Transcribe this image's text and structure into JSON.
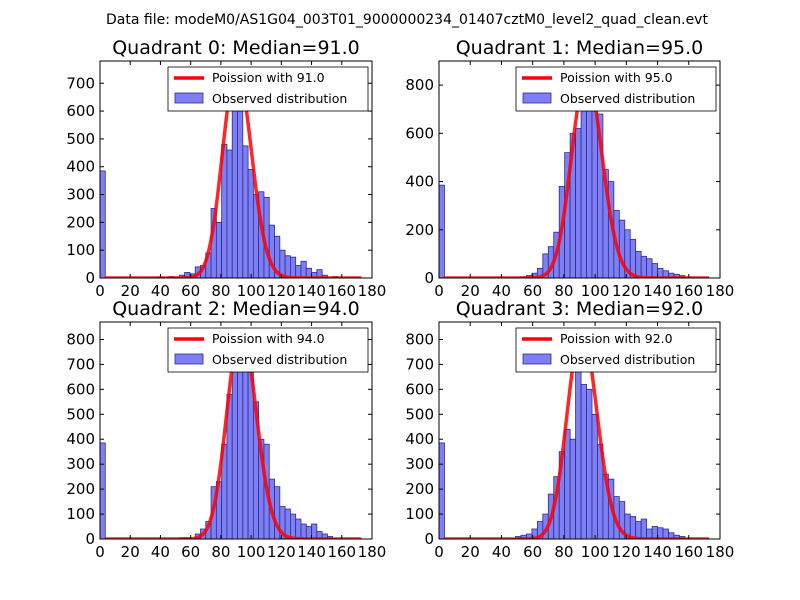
{
  "figure": {
    "suptitle": "Data file: modeM0/AS1G04_003T01_9000000234_01407cztM0_level2_quad_clean.evt"
  },
  "style": {
    "bar_fill": "#7f7ff5",
    "bar_edge": "#2c2c8c",
    "line_color": "#ff0000",
    "axis_color": "#000000"
  },
  "chart_data": [
    {
      "type": "bar",
      "title": "Quadrant 0: Median=91.0",
      "legend": {
        "line": "Poission with 91.0",
        "bars": "Observed distribution",
        "placement": "upper-right"
      },
      "xlim": [
        0,
        180
      ],
      "ylim": [
        0,
        780
      ],
      "xticks": [
        0,
        20,
        40,
        60,
        80,
        100,
        120,
        140,
        160,
        180
      ],
      "yticks": [
        0,
        100,
        200,
        300,
        400,
        500,
        600,
        700
      ],
      "bin_width": 3.5,
      "bins": [
        {
          "x": 0,
          "y": 385
        },
        {
          "x": 38.5,
          "y": 3
        },
        {
          "x": 45.5,
          "y": 5
        },
        {
          "x": 49,
          "y": 3
        },
        {
          "x": 52.5,
          "y": 10
        },
        {
          "x": 56,
          "y": 20
        },
        {
          "x": 59.5,
          "y": 15
        },
        {
          "x": 63,
          "y": 40
        },
        {
          "x": 66.5,
          "y": 45
        },
        {
          "x": 70,
          "y": 90
        },
        {
          "x": 73.5,
          "y": 250
        },
        {
          "x": 77,
          "y": 200
        },
        {
          "x": 80.5,
          "y": 480
        },
        {
          "x": 84,
          "y": 460
        },
        {
          "x": 87.5,
          "y": 700
        },
        {
          "x": 91,
          "y": 600
        },
        {
          "x": 94.5,
          "y": 475
        },
        {
          "x": 98,
          "y": 390
        },
        {
          "x": 101.5,
          "y": 300
        },
        {
          "x": 105,
          "y": 310
        },
        {
          "x": 108.5,
          "y": 290
        },
        {
          "x": 112,
          "y": 190
        },
        {
          "x": 115.5,
          "y": 150
        },
        {
          "x": 119,
          "y": 100
        },
        {
          "x": 122.5,
          "y": 80
        },
        {
          "x": 126,
          "y": 75
        },
        {
          "x": 129.5,
          "y": 45
        },
        {
          "x": 133,
          "y": 60
        },
        {
          "x": 136.5,
          "y": 35
        },
        {
          "x": 140,
          "y": 20
        },
        {
          "x": 143.5,
          "y": 30
        },
        {
          "x": 147,
          "y": 10
        },
        {
          "x": 154,
          "y": 5
        }
      ],
      "poisson_mean": 91.0,
      "poisson_peak": 750,
      "curve_range": [
        3,
        173
      ]
    },
    {
      "type": "bar",
      "title": "Quadrant 1: Median=95.0",
      "legend": {
        "line": "Poission with 95.0",
        "bars": "Observed distribution",
        "placement": "upper-right"
      },
      "xlim": [
        0,
        180
      ],
      "ylim": [
        0,
        900
      ],
      "xticks": [
        0,
        20,
        40,
        60,
        80,
        100,
        120,
        140,
        160,
        180
      ],
      "yticks": [
        0,
        200,
        400,
        600,
        800
      ],
      "bin_width": 3.5,
      "bins": [
        {
          "x": 0,
          "y": 385
        },
        {
          "x": 52.5,
          "y": 5
        },
        {
          "x": 56,
          "y": 10
        },
        {
          "x": 59.5,
          "y": 20
        },
        {
          "x": 63,
          "y": 40
        },
        {
          "x": 66.5,
          "y": 100
        },
        {
          "x": 70,
          "y": 130
        },
        {
          "x": 73.5,
          "y": 190
        },
        {
          "x": 77,
          "y": 380
        },
        {
          "x": 80.5,
          "y": 520
        },
        {
          "x": 84,
          "y": 600
        },
        {
          "x": 87.5,
          "y": 620
        },
        {
          "x": 91,
          "y": 760
        },
        {
          "x": 94.5,
          "y": 850
        },
        {
          "x": 98,
          "y": 700
        },
        {
          "x": 101.5,
          "y": 680
        },
        {
          "x": 105,
          "y": 450
        },
        {
          "x": 108.5,
          "y": 400
        },
        {
          "x": 112,
          "y": 280
        },
        {
          "x": 115.5,
          "y": 240
        },
        {
          "x": 119,
          "y": 200
        },
        {
          "x": 122.5,
          "y": 160
        },
        {
          "x": 126,
          "y": 110
        },
        {
          "x": 129.5,
          "y": 90
        },
        {
          "x": 133,
          "y": 80
        },
        {
          "x": 136.5,
          "y": 60
        },
        {
          "x": 140,
          "y": 40
        },
        {
          "x": 143.5,
          "y": 30
        },
        {
          "x": 147,
          "y": 20
        },
        {
          "x": 150.5,
          "y": 15
        },
        {
          "x": 154,
          "y": 10
        }
      ],
      "poisson_mean": 95.0,
      "poisson_peak": 840,
      "curve_range": [
        3,
        173
      ]
    },
    {
      "type": "bar",
      "title": "Quadrant 2: Median=94.0",
      "legend": {
        "line": "Poission with 94.0",
        "bars": "Observed distribution",
        "placement": "upper-right"
      },
      "xlim": [
        0,
        180
      ],
      "ylim": [
        0,
        870
      ],
      "xticks": [
        0,
        20,
        40,
        60,
        80,
        100,
        120,
        140,
        160,
        180
      ],
      "yticks": [
        0,
        100,
        200,
        300,
        400,
        500,
        600,
        700,
        800
      ],
      "bin_width": 3.5,
      "bins": [
        {
          "x": 0,
          "y": 385
        },
        {
          "x": 52.5,
          "y": 5
        },
        {
          "x": 56,
          "y": 5
        },
        {
          "x": 63,
          "y": 20
        },
        {
          "x": 66.5,
          "y": 40
        },
        {
          "x": 70,
          "y": 70
        },
        {
          "x": 73.5,
          "y": 210
        },
        {
          "x": 77,
          "y": 230
        },
        {
          "x": 80.5,
          "y": 380
        },
        {
          "x": 84,
          "y": 580
        },
        {
          "x": 87.5,
          "y": 700
        },
        {
          "x": 91,
          "y": 820
        },
        {
          "x": 94.5,
          "y": 840
        },
        {
          "x": 98,
          "y": 700
        },
        {
          "x": 101.5,
          "y": 550
        },
        {
          "x": 105,
          "y": 400
        },
        {
          "x": 108.5,
          "y": 380
        },
        {
          "x": 112,
          "y": 240
        },
        {
          "x": 115.5,
          "y": 210
        },
        {
          "x": 119,
          "y": 130
        },
        {
          "x": 122.5,
          "y": 120
        },
        {
          "x": 126,
          "y": 100
        },
        {
          "x": 129.5,
          "y": 80
        },
        {
          "x": 133,
          "y": 60
        },
        {
          "x": 136.5,
          "y": 50
        },
        {
          "x": 140,
          "y": 60
        },
        {
          "x": 143.5,
          "y": 30
        },
        {
          "x": 147,
          "y": 20
        },
        {
          "x": 150.5,
          "y": 10
        }
      ],
      "poisson_mean": 94.0,
      "poisson_peak": 840,
      "curve_range": [
        3,
        173
      ]
    },
    {
      "type": "bar",
      "title": "Quadrant 3: Median=92.0",
      "legend": {
        "line": "Poission with 92.0",
        "bars": "Observed distribution",
        "placement": "upper-right"
      },
      "xlim": [
        0,
        180
      ],
      "ylim": [
        0,
        870
      ],
      "xticks": [
        0,
        20,
        40,
        60,
        80,
        100,
        120,
        140,
        160,
        180
      ],
      "yticks": [
        0,
        100,
        200,
        300,
        400,
        500,
        600,
        700,
        800
      ],
      "bin_width": 3.5,
      "bins": [
        {
          "x": 0,
          "y": 385
        },
        {
          "x": 49,
          "y": 10
        },
        {
          "x": 52.5,
          "y": 15
        },
        {
          "x": 56,
          "y": 20
        },
        {
          "x": 59.5,
          "y": 40
        },
        {
          "x": 63,
          "y": 70
        },
        {
          "x": 66.5,
          "y": 100
        },
        {
          "x": 70,
          "y": 180
        },
        {
          "x": 73.5,
          "y": 250
        },
        {
          "x": 77,
          "y": 350
        },
        {
          "x": 80.5,
          "y": 440
        },
        {
          "x": 84,
          "y": 400
        },
        {
          "x": 87.5,
          "y": 720
        },
        {
          "x": 91,
          "y": 620
        },
        {
          "x": 94.5,
          "y": 600
        },
        {
          "x": 98,
          "y": 500
        },
        {
          "x": 101.5,
          "y": 380
        },
        {
          "x": 105,
          "y": 260
        },
        {
          "x": 108.5,
          "y": 240
        },
        {
          "x": 112,
          "y": 170
        },
        {
          "x": 115.5,
          "y": 150
        },
        {
          "x": 119,
          "y": 100
        },
        {
          "x": 122.5,
          "y": 90
        },
        {
          "x": 126,
          "y": 70
        },
        {
          "x": 129.5,
          "y": 80
        },
        {
          "x": 133,
          "y": 40
        },
        {
          "x": 136.5,
          "y": 50
        },
        {
          "x": 140,
          "y": 45
        },
        {
          "x": 143.5,
          "y": 40
        },
        {
          "x": 147,
          "y": 25
        },
        {
          "x": 150.5,
          "y": 15
        },
        {
          "x": 154,
          "y": 10
        }
      ],
      "poisson_mean": 92.0,
      "poisson_peak": 830,
      "curve_range": [
        3,
        173
      ]
    }
  ]
}
